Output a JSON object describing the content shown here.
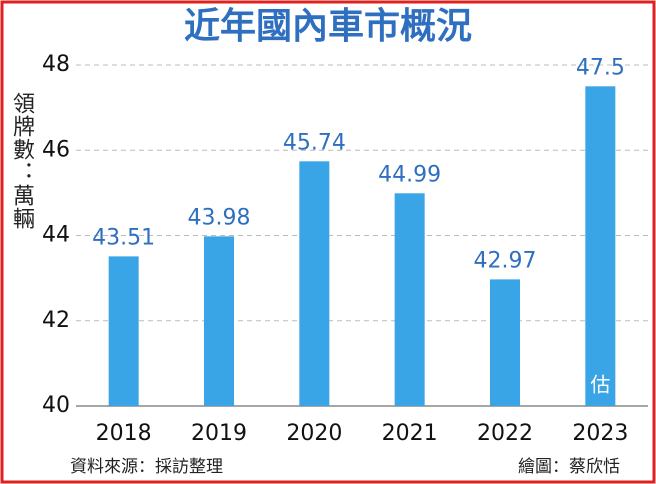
{
  "chart_data": {
    "type": "bar",
    "title": "近年國內車市概況",
    "y_label": "領牌數：萬輛",
    "categories": [
      "2018",
      "2019",
      "2020",
      "2021",
      "2022",
      "2023"
    ],
    "values": [
      43.51,
      43.98,
      45.74,
      44.99,
      42.97,
      47.5
    ],
    "color": "#39a4e6",
    "ylim": [
      40,
      48
    ],
    "yticks": [
      40,
      42,
      44,
      46,
      48
    ],
    "grid": true,
    "annotations": [
      {
        "text": "估",
        "category": "2023"
      }
    ],
    "source": "資料來源：採訪整理",
    "credit": "繪圖：蔡欣恬"
  }
}
